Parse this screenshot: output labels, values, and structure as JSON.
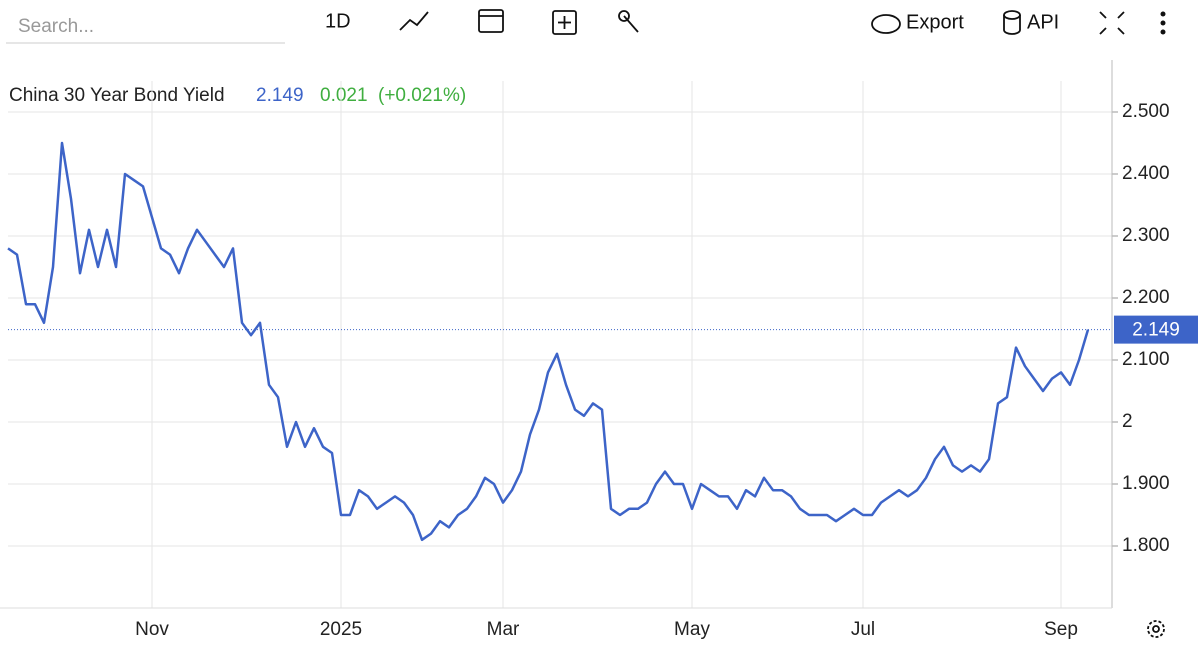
{
  "toolbar": {
    "search_placeholder": "Search...",
    "interval": "1D",
    "export": "Export",
    "api": "API"
  },
  "chart_data": {
    "type": "line",
    "title": "China 30 Year Bond Yield",
    "change": 0.021,
    "change_label": "(+0.021%)",
    "categories": [
      null,
      null,
      null,
      null,
      null,
      null,
      null,
      null,
      null,
      null,
      null,
      null,
      null,
      null,
      null,
      null,
      "Nov",
      null,
      null,
      null,
      null,
      null,
      null,
      null,
      null,
      null,
      null,
      null,
      null,
      null,
      null,
      null,
      null,
      null,
      null,
      null,
      null,
      "2025",
      null,
      null,
      null,
      null,
      null,
      null,
      null,
      null,
      null,
      null,
      null,
      null,
      null,
      null,
      null,
      null,
      null,
      "Mar",
      null,
      null,
      null,
      null,
      null,
      null,
      null,
      null,
      null,
      null,
      null,
      null,
      null,
      null,
      null,
      null,
      null,
      null,
      null,
      null,
      "May",
      null,
      null,
      null,
      null,
      null,
      null,
      null,
      null,
      null,
      null,
      null,
      null,
      null,
      null,
      null,
      null,
      null,
      null,
      "Jul",
      null,
      null,
      null,
      null,
      null,
      null,
      null,
      null,
      null,
      null,
      null,
      null,
      null,
      null,
      null,
      null,
      null,
      null,
      null,
      null,
      null,
      "Sep",
      null,
      null,
      null
    ],
    "series": [
      {
        "name": "China 30 Year Bond Yield",
        "color": "#3d64c8",
        "values": [
          2.28,
          2.27,
          2.19,
          2.19,
          2.16,
          2.25,
          2.45,
          2.36,
          2.24,
          2.31,
          2.25,
          2.31,
          2.25,
          2.4,
          2.39,
          2.38,
          2.33,
          2.28,
          2.27,
          2.24,
          2.28,
          2.31,
          2.29,
          2.27,
          2.25,
          2.28,
          2.16,
          2.14,
          2.16,
          2.06,
          2.04,
          1.96,
          2.0,
          1.96,
          1.99,
          1.96,
          1.95,
          1.85,
          1.85,
          1.89,
          1.88,
          1.86,
          1.87,
          1.88,
          1.87,
          1.85,
          1.81,
          1.82,
          1.84,
          1.83,
          1.85,
          1.86,
          1.88,
          1.91,
          1.9,
          1.87,
          1.89,
          1.92,
          1.98,
          2.02,
          2.08,
          2.11,
          2.06,
          2.02,
          2.01,
          2.03,
          2.02,
          1.86,
          1.85,
          1.86,
          1.86,
          1.87,
          1.9,
          1.92,
          1.9,
          1.9,
          1.86,
          1.9,
          1.89,
          1.88,
          1.88,
          1.86,
          1.89,
          1.88,
          1.91,
          1.89,
          1.89,
          1.88,
          1.86,
          1.85,
          1.85,
          1.85,
          1.84,
          1.85,
          1.86,
          1.85,
          1.85,
          1.87,
          1.88,
          1.89,
          1.88,
          1.89,
          1.91,
          1.94,
          1.96,
          1.93,
          1.92,
          1.93,
          1.92,
          1.94,
          2.03,
          2.04,
          2.12,
          2.09,
          2.07,
          2.05,
          2.07,
          2.08,
          2.06,
          2.1,
          2.149
        ]
      }
    ],
    "ylim": [
      1.7,
      2.55
    ],
    "yticks": [
      {
        "value": 1.8,
        "label": "1.800"
      },
      {
        "value": 1.9,
        "label": "1.900"
      },
      2,
      {
        "value": 2.1,
        "label": "2.100"
      },
      {
        "value": 2.2,
        "label": "2.200"
      },
      {
        "value": 2.3,
        "label": "2.300"
      },
      {
        "value": 2.4,
        "label": "2.400"
      },
      {
        "value": 2.5,
        "label": "2.500"
      }
    ],
    "grid": true
  }
}
